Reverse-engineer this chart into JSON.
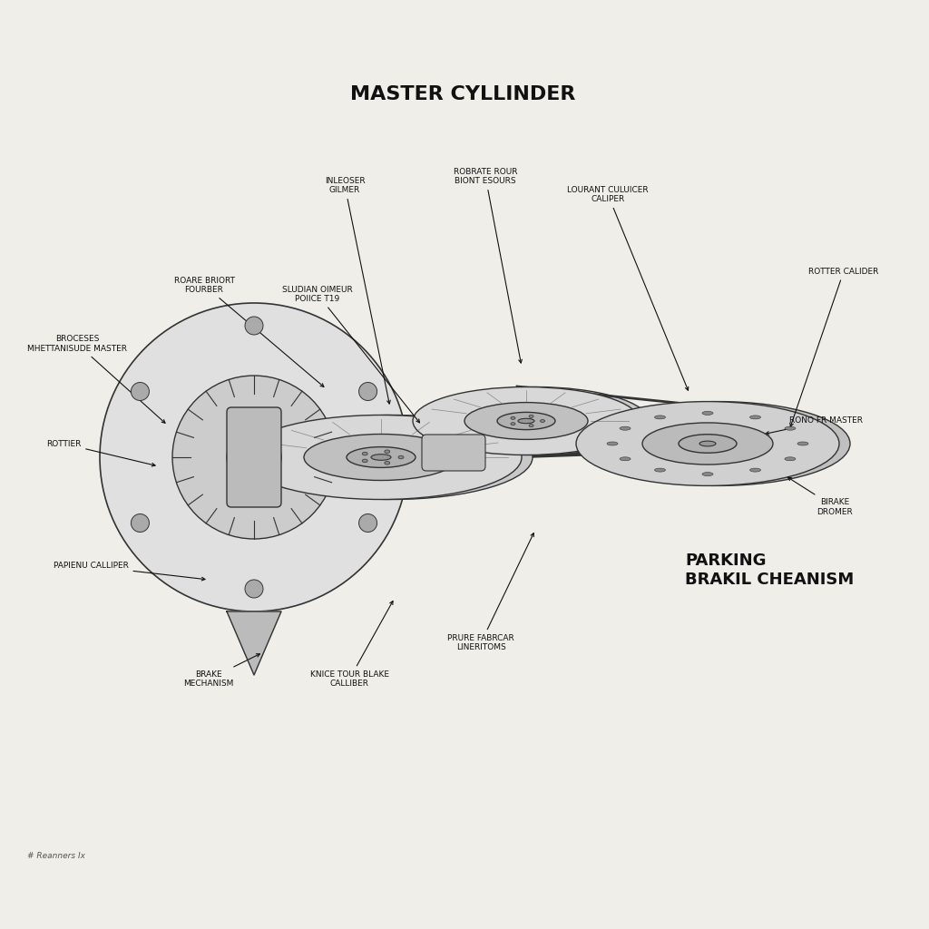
{
  "title": "MASTER CYLLINDER",
  "parking_label": "PARKING\nBRAKIL CHEANISM",
  "bg_color": "#f0eee8",
  "labels": {
    "inleoser_gilmer": "INLEOSER\nGILMER",
    "robrate_rour": "ROBRATE ROUR\nBIONT ESOURS",
    "lourant_culuicer": "LOURANT CULUICER\nCALIPER",
    "rotter_calider": "ROTTER CALIDER",
    "sludian_oimeur": "SLUDIAN OIMEUR\nPOIICE T19",
    "roare_briort": "ROARE BRIORT\nFOURBER",
    "broceses_mhettanisude": "BROCESES\nMHETTANISUDE MASTER",
    "rottier": "ROTTIER",
    "papienu_calliper": "PAPIENU CALLIPER",
    "brake_mechanism": "BRAKE\nMECHANISM",
    "knice_tour_blake": "KNICE TOUR BLAKE\nCALLIBER",
    "prure_fabrcar": "PRURE FABRCAR\nLINERITOMS",
    "rono_fr_master": "RONO FR MASTER",
    "birake_dromer": "BIRAKE\nDROMER"
  },
  "footer": "# Reanners Ix"
}
